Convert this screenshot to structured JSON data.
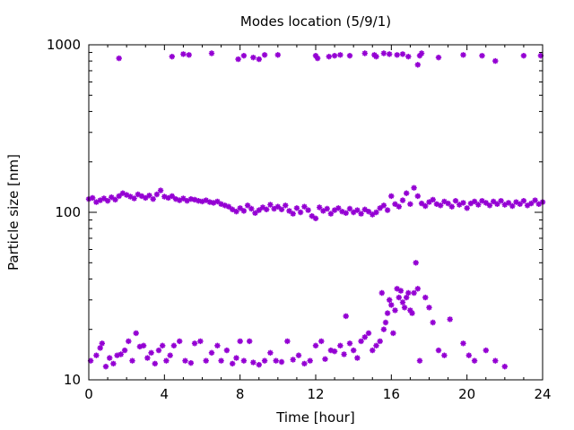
{
  "chart_data": {
    "type": "scatter",
    "title": "Modes location (5/9/1)",
    "xlabel": "Time [hour]",
    "ylabel": "Particle size [nm]",
    "xlim": [
      0,
      24
    ],
    "ylim": [
      10,
      1000
    ],
    "yscale": "log",
    "grid": false,
    "legend": "none",
    "x_ticks": [
      0,
      4,
      8,
      12,
      16,
      20,
      24
    ],
    "x_tick_labels": [
      "0",
      "4",
      "8",
      "12",
      "16",
      "20",
      "24"
    ],
    "y_ticks": [
      10,
      100,
      1000
    ],
    "y_tick_labels": [
      "10",
      "100",
      "1000"
    ],
    "colors": {
      "marker": "#9400d3",
      "axis": "#000000",
      "background": "#ffffff"
    },
    "marker": "asterisk",
    "series": [
      {
        "points": [
          [
            1.6,
            830
          ],
          [
            4.4,
            850
          ],
          [
            5.0,
            880
          ],
          [
            5.3,
            870
          ],
          [
            6.5,
            890
          ],
          [
            7.9,
            820
          ],
          [
            8.2,
            860
          ],
          [
            8.7,
            840
          ],
          [
            9.0,
            820
          ],
          [
            9.3,
            870
          ],
          [
            10.0,
            870
          ],
          [
            12.0,
            860
          ],
          [
            12.1,
            830
          ],
          [
            12.7,
            850
          ],
          [
            13.0,
            860
          ],
          [
            13.3,
            870
          ],
          [
            13.8,
            860
          ],
          [
            14.6,
            890
          ],
          [
            15.1,
            870
          ],
          [
            15.2,
            850
          ],
          [
            15.6,
            890
          ],
          [
            15.9,
            880
          ],
          [
            16.3,
            870
          ],
          [
            16.6,
            880
          ],
          [
            16.9,
            850
          ],
          [
            17.4,
            760
          ],
          [
            17.5,
            860
          ],
          [
            17.6,
            890
          ],
          [
            18.5,
            840
          ],
          [
            19.8,
            870
          ],
          [
            20.8,
            860
          ],
          [
            21.5,
            800
          ],
          [
            23.0,
            860
          ],
          [
            23.9,
            860
          ],
          [
            0.0,
            120
          ],
          [
            0.2,
            122
          ],
          [
            0.4,
            115
          ],
          [
            0.6,
            118
          ],
          [
            0.8,
            121
          ],
          [
            1.0,
            117
          ],
          [
            1.2,
            123
          ],
          [
            1.4,
            119
          ],
          [
            1.6,
            125
          ],
          [
            1.8,
            130
          ],
          [
            2.0,
            127
          ],
          [
            2.2,
            124
          ],
          [
            2.4,
            121
          ],
          [
            2.6,
            128
          ],
          [
            2.8,
            125
          ],
          [
            3.0,
            122
          ],
          [
            3.2,
            126
          ],
          [
            3.4,
            120
          ],
          [
            3.6,
            128
          ],
          [
            3.8,
            135
          ],
          [
            4.0,
            124
          ],
          [
            4.2,
            122
          ],
          [
            4.4,
            125
          ],
          [
            4.6,
            120
          ],
          [
            4.8,
            118
          ],
          [
            5.0,
            121
          ],
          [
            5.2,
            117
          ],
          [
            5.4,
            120
          ],
          [
            5.6,
            119
          ],
          [
            5.8,
            117
          ],
          [
            6.0,
            116
          ],
          [
            6.2,
            118
          ],
          [
            6.4,
            115
          ],
          [
            6.6,
            114
          ],
          [
            6.8,
            116
          ],
          [
            7.0,
            112
          ],
          [
            7.2,
            110
          ],
          [
            7.4,
            108
          ],
          [
            7.6,
            104
          ],
          [
            7.8,
            101
          ],
          [
            8.0,
            106
          ],
          [
            8.2,
            102
          ],
          [
            8.4,
            110
          ],
          [
            8.6,
            105
          ],
          [
            8.8,
            99
          ],
          [
            9.0,
            103
          ],
          [
            9.2,
            107
          ],
          [
            9.4,
            104
          ],
          [
            9.6,
            111
          ],
          [
            9.8,
            105
          ],
          [
            10.0,
            108
          ],
          [
            10.2,
            104
          ],
          [
            10.4,
            110
          ],
          [
            10.6,
            102
          ],
          [
            10.8,
            98
          ],
          [
            11.0,
            106
          ],
          [
            11.2,
            100
          ],
          [
            11.4,
            108
          ],
          [
            11.6,
            103
          ],
          [
            11.8,
            95
          ],
          [
            12.0,
            92
          ],
          [
            12.2,
            107
          ],
          [
            12.4,
            102
          ],
          [
            12.6,
            105
          ],
          [
            12.8,
            98
          ],
          [
            13.0,
            103
          ],
          [
            13.2,
            106
          ],
          [
            13.4,
            101
          ],
          [
            13.6,
            99
          ],
          [
            13.8,
            105
          ],
          [
            14.0,
            100
          ],
          [
            14.2,
            103
          ],
          [
            14.4,
            98
          ],
          [
            14.6,
            104
          ],
          [
            14.8,
            101
          ],
          [
            15.0,
            97
          ],
          [
            15.2,
            100
          ],
          [
            15.4,
            106
          ],
          [
            15.6,
            110
          ],
          [
            15.8,
            103
          ],
          [
            16.0,
            125
          ],
          [
            16.2,
            112
          ],
          [
            16.4,
            108
          ],
          [
            16.6,
            118
          ],
          [
            16.8,
            130
          ],
          [
            17.0,
            112
          ],
          [
            17.2,
            140
          ],
          [
            17.4,
            125
          ],
          [
            17.6,
            113
          ],
          [
            17.8,
            109
          ],
          [
            18.0,
            115
          ],
          [
            18.2,
            119
          ],
          [
            18.4,
            112
          ],
          [
            18.6,
            110
          ],
          [
            18.8,
            116
          ],
          [
            19.0,
            113
          ],
          [
            19.2,
            108
          ],
          [
            19.4,
            117
          ],
          [
            19.6,
            111
          ],
          [
            19.8,
            114
          ],
          [
            20.0,
            106
          ],
          [
            20.2,
            113
          ],
          [
            20.4,
            116
          ],
          [
            20.6,
            111
          ],
          [
            20.8,
            117
          ],
          [
            21.0,
            114
          ],
          [
            21.2,
            110
          ],
          [
            21.4,
            116
          ],
          [
            21.6,
            112
          ],
          [
            21.8,
            117
          ],
          [
            22.0,
            111
          ],
          [
            22.2,
            114
          ],
          [
            22.4,
            109
          ],
          [
            22.6,
            115
          ],
          [
            22.8,
            112
          ],
          [
            23.0,
            117
          ],
          [
            23.2,
            110
          ],
          [
            23.4,
            113
          ],
          [
            23.6,
            118
          ],
          [
            23.8,
            112
          ],
          [
            24.0,
            115
          ],
          [
            0.1,
            13
          ],
          [
            0.4,
            14
          ],
          [
            0.6,
            15.5
          ],
          [
            0.7,
            16.5
          ],
          [
            0.9,
            12
          ],
          [
            1.1,
            13.5
          ],
          [
            1.3,
            12.5
          ],
          [
            1.5,
            14
          ],
          [
            1.7,
            14.2
          ],
          [
            1.9,
            15
          ],
          [
            2.1,
            17
          ],
          [
            2.3,
            13
          ],
          [
            2.5,
            19
          ],
          [
            2.7,
            15.8
          ],
          [
            2.9,
            16
          ],
          [
            3.1,
            13.5
          ],
          [
            3.3,
            14.5
          ],
          [
            3.5,
            12.5
          ],
          [
            3.7,
            15
          ],
          [
            3.9,
            16
          ],
          [
            4.1,
            13
          ],
          [
            4.3,
            14
          ],
          [
            4.5,
            16
          ],
          [
            4.8,
            17
          ],
          [
            5.1,
            13
          ],
          [
            5.4,
            12.6
          ],
          [
            5.6,
            16.5
          ],
          [
            5.9,
            17
          ],
          [
            6.2,
            13
          ],
          [
            6.5,
            14.5
          ],
          [
            6.8,
            16
          ],
          [
            7.0,
            13
          ],
          [
            7.3,
            15
          ],
          [
            7.6,
            12.5
          ],
          [
            7.8,
            13.5
          ],
          [
            8.0,
            17
          ],
          [
            8.2,
            13
          ],
          [
            8.5,
            17
          ],
          [
            8.7,
            12.7
          ],
          [
            9.0,
            12.3
          ],
          [
            9.3,
            13
          ],
          [
            9.6,
            14.5
          ],
          [
            9.9,
            13
          ],
          [
            10.2,
            12.8
          ],
          [
            10.5,
            17
          ],
          [
            10.8,
            13.2
          ],
          [
            11.1,
            14
          ],
          [
            11.4,
            12.5
          ],
          [
            11.7,
            13
          ],
          [
            12.0,
            16
          ],
          [
            12.3,
            17
          ],
          [
            12.5,
            13.3
          ],
          [
            12.8,
            15
          ],
          [
            13.0,
            14.8
          ],
          [
            13.3,
            16
          ],
          [
            13.5,
            14.2
          ],
          [
            13.6,
            24
          ],
          [
            13.8,
            16.5
          ],
          [
            14.0,
            15
          ],
          [
            14.2,
            13.5
          ],
          [
            14.4,
            17
          ],
          [
            14.6,
            18
          ],
          [
            14.8,
            19
          ],
          [
            15.0,
            15
          ],
          [
            15.2,
            16
          ],
          [
            15.4,
            17
          ],
          [
            15.5,
            33
          ],
          [
            15.6,
            20
          ],
          [
            15.7,
            22
          ],
          [
            15.8,
            25
          ],
          [
            15.9,
            30
          ],
          [
            16.0,
            28
          ],
          [
            16.1,
            19
          ],
          [
            16.2,
            26
          ],
          [
            16.3,
            35
          ],
          [
            16.4,
            31
          ],
          [
            16.5,
            34
          ],
          [
            16.6,
            29
          ],
          [
            16.7,
            27
          ],
          [
            16.8,
            31
          ],
          [
            16.9,
            33
          ],
          [
            17.0,
            26
          ],
          [
            17.1,
            25
          ],
          [
            17.2,
            33
          ],
          [
            17.3,
            50
          ],
          [
            17.4,
            35
          ],
          [
            17.5,
            13
          ],
          [
            17.8,
            31
          ],
          [
            18.0,
            27
          ],
          [
            18.2,
            22
          ],
          [
            18.5,
            15
          ],
          [
            18.8,
            14
          ],
          [
            19.1,
            23
          ],
          [
            19.8,
            16.5
          ],
          [
            20.1,
            14
          ],
          [
            20.4,
            13
          ],
          [
            21.0,
            15
          ],
          [
            21.5,
            13
          ],
          [
            22.0,
            12
          ]
        ]
      }
    ]
  }
}
